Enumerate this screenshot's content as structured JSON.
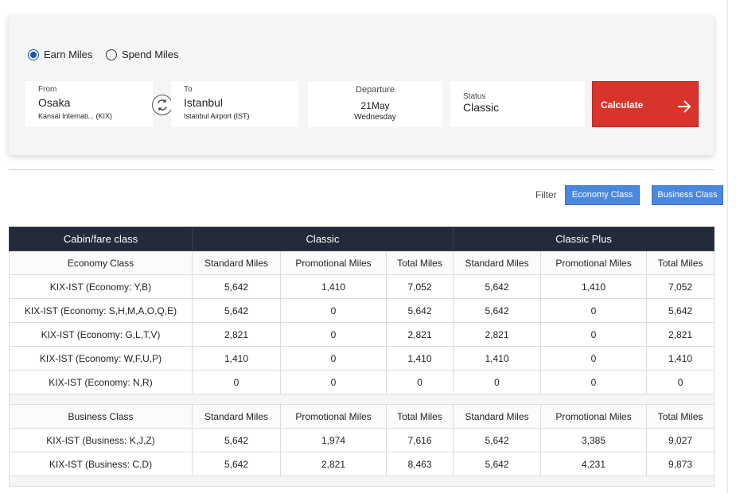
{
  "modes": [
    {
      "label": "Earn Miles",
      "selected": true
    },
    {
      "label": "Spend Miles",
      "selected": false
    }
  ],
  "form": {
    "from": {
      "label": "From",
      "city": "Osaka",
      "airport": "Kansai Internati... (KIX)"
    },
    "to": {
      "label": "To",
      "city": "Istanbul",
      "airport": "Istanbul Airport (IST)"
    },
    "departure": {
      "label": "Departure",
      "date": "21May",
      "weekday": "Wednesday"
    },
    "status": {
      "label": "Status",
      "value": "Classic"
    },
    "submit": "Calculate"
  },
  "filter": {
    "label": "Filter",
    "options": [
      "Economy Class",
      "Business Class"
    ]
  },
  "table": {
    "header": [
      "Cabin/fare class",
      "Classic",
      "Classic Plus"
    ],
    "sections": [
      {
        "title": "Economy Class",
        "columns": [
          "Standard Miles",
          "Promotional Miles",
          "Total Miles",
          "Standard Miles",
          "Promotional Miles",
          "Total Miles"
        ],
        "rows": [
          {
            "fare": "KIX-IST (Economy: Y,B)",
            "values": [
              "5,642",
              "1,410",
              "7,052",
              "5,642",
              "1,410",
              "7,052"
            ]
          },
          {
            "fare": "KIX-IST (Economy: S,H,M,A,O,Q,E)",
            "values": [
              "5,642",
              "0",
              "5,642",
              "5,642",
              "0",
              "5,642"
            ]
          },
          {
            "fare": "KIX-IST (Economy: G,L,T,V)",
            "values": [
              "2,821",
              "0",
              "2,821",
              "2,821",
              "0",
              "2,821"
            ]
          },
          {
            "fare": "KIX-IST (Economy: W,F,U,P)",
            "values": [
              "1,410",
              "0",
              "1,410",
              "1,410",
              "0",
              "1,410"
            ]
          },
          {
            "fare": "KIX-IST (Economy: N,R)",
            "values": [
              "0",
              "0",
              "0",
              "0",
              "0",
              "0"
            ]
          }
        ]
      },
      {
        "title": "Business Class",
        "columns": [
          "Standard Miles",
          "Promotional Miles",
          "Total Miles",
          "Standard Miles",
          "Promotional Miles",
          "Total Miles"
        ],
        "rows": [
          {
            "fare": "KIX-IST (Business: K,J,Z)",
            "values": [
              "5,642",
              "1,974",
              "7,616",
              "5,642",
              "3,385",
              "9,027"
            ]
          },
          {
            "fare": "KIX-IST (Business: C,D)",
            "values": [
              "5,642",
              "2,821",
              "8,463",
              "5,642",
              "4,231",
              "9,873"
            ]
          }
        ]
      }
    ]
  }
}
